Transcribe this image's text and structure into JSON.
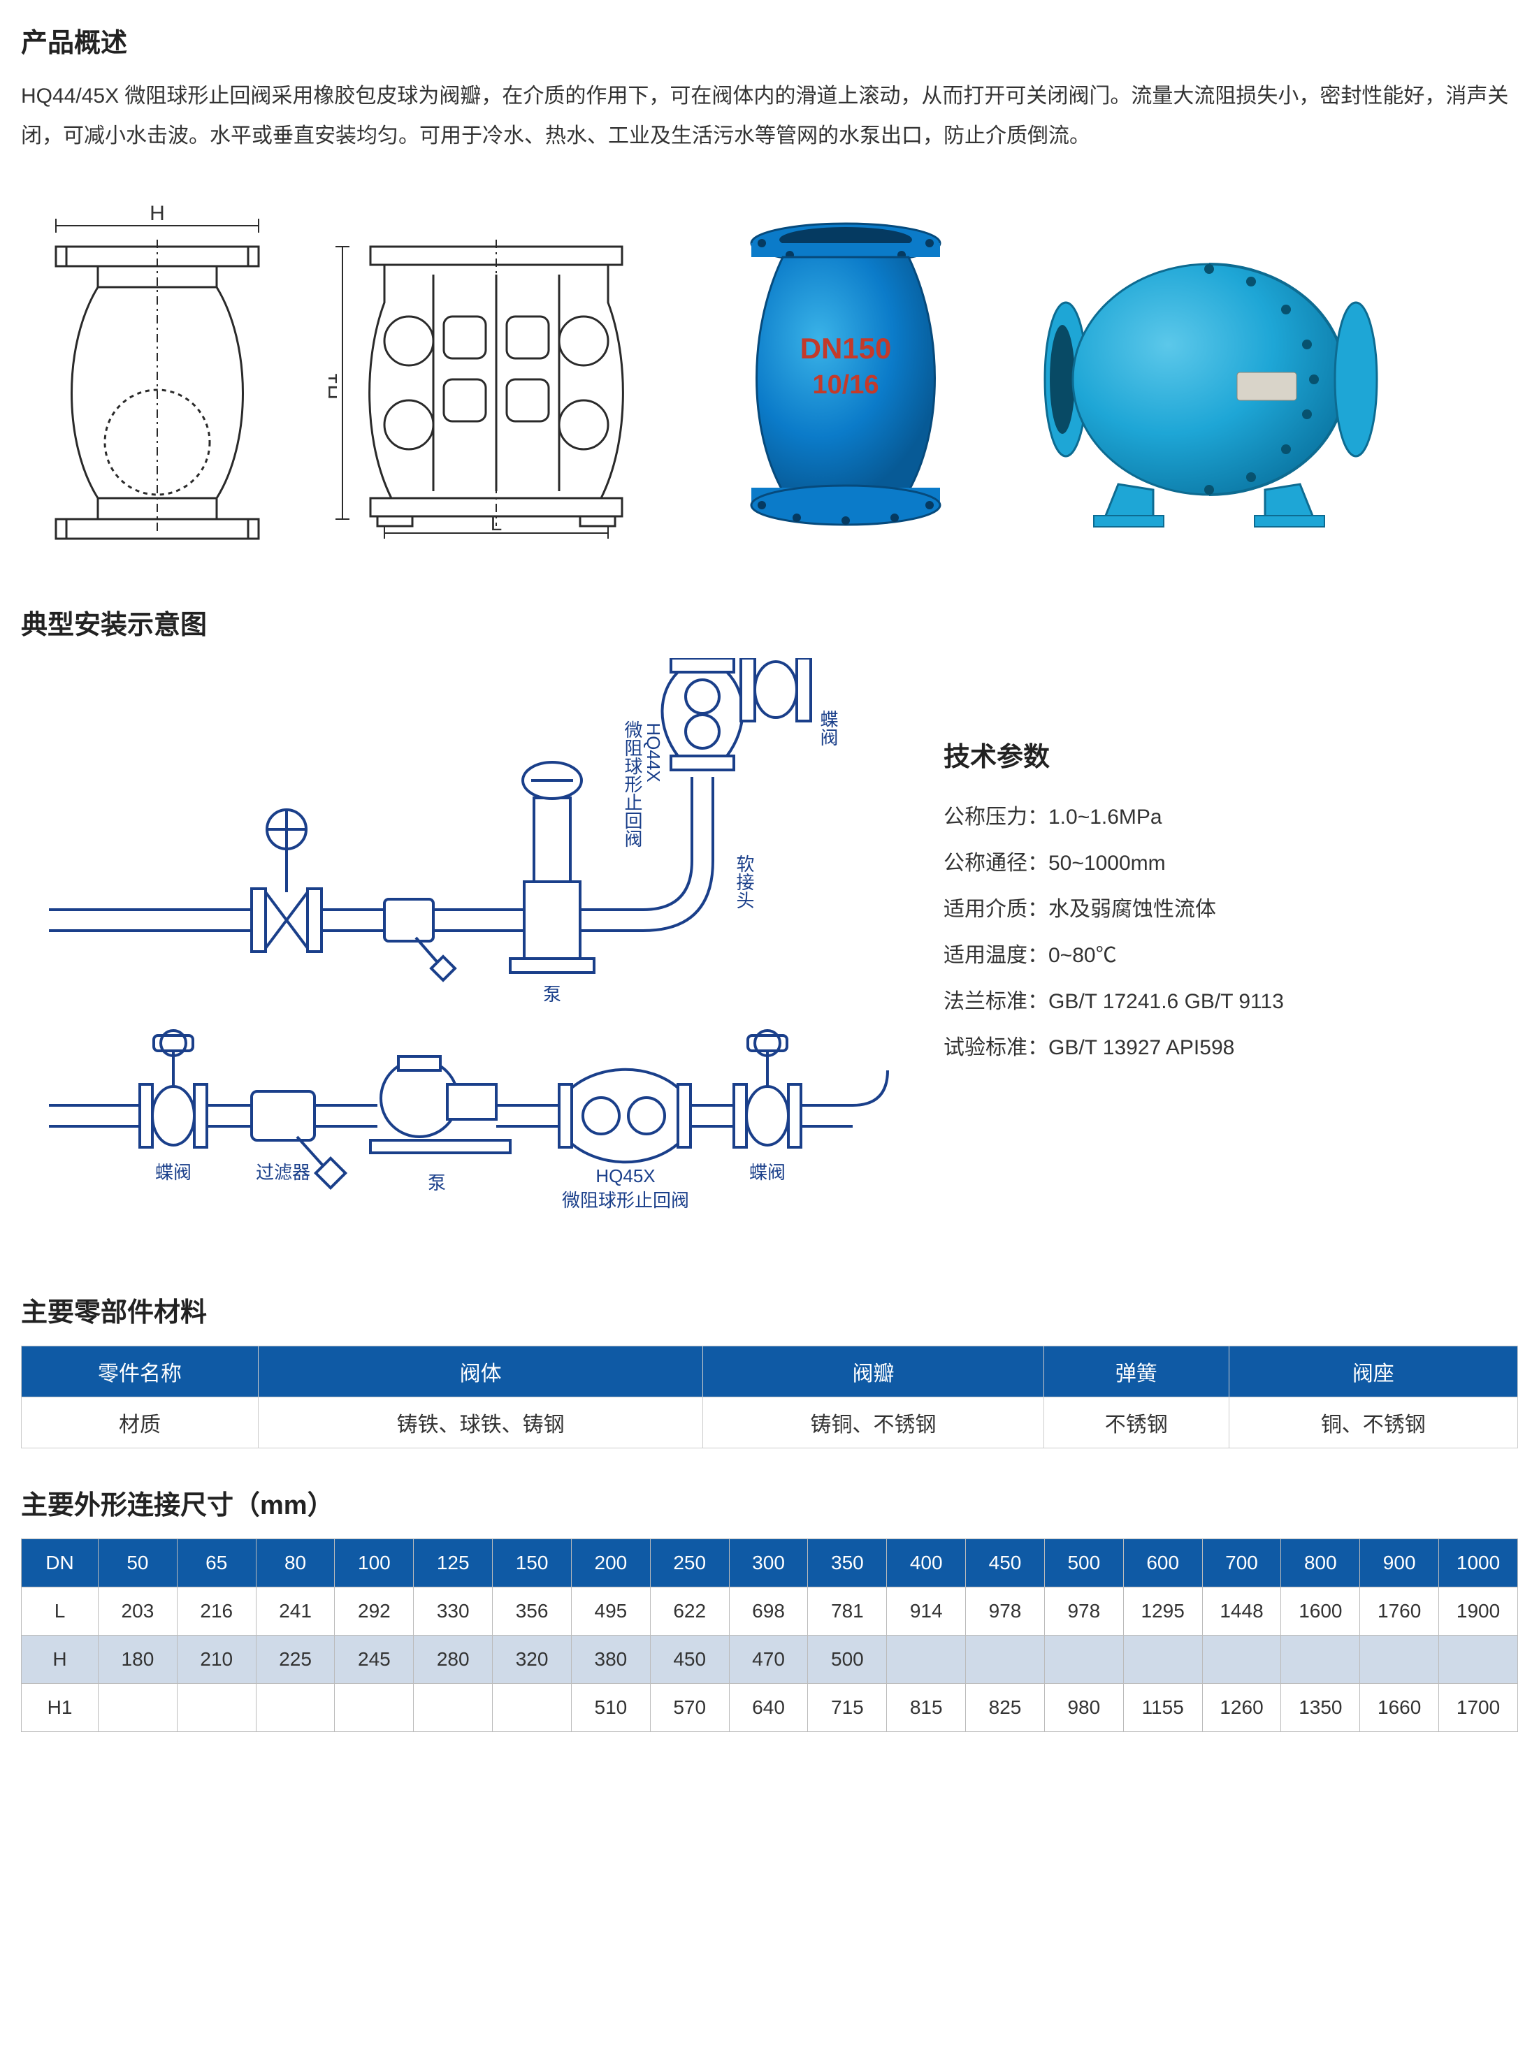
{
  "overview": {
    "title": "产品概述",
    "text": "HQ44/45X 微阻球形止回阀采用橡胶包皮球为阀瓣，在介质的作用下，可在阀体内的滑道上滚动，从而打开可关闭阀门。流量大流阻损失小，密封性能好，消声关闭，可减小水击波。水平或垂直安装均匀。可用于冷水、热水、工业及生活污水等管网的水泵出口，防止介质倒流。"
  },
  "drawing": {
    "dim_H": "H",
    "dim_H1": "H1",
    "dim_L": "L",
    "product_label": "DN150",
    "product_sub": "10/16"
  },
  "install": {
    "title": "典型安装示意图",
    "labels": {
      "butterfly_valve": "蝶阀",
      "filter": "过滤器",
      "pump": "泵",
      "hq45x_line1": "HQ45X",
      "hq45x_line2": "微阻球形止回阀",
      "hq44x": "HQ44X",
      "hq44x_sub": "微阻球形止回阀",
      "flexible_joint": "软接头"
    }
  },
  "tech": {
    "title": "技术参数",
    "lines": [
      "公称压力：1.0~1.6MPa",
      "公称通径：50~1000mm",
      "适用介质：水及弱腐蚀性流体",
      "适用温度：0~80℃",
      "法兰标准：GB/T 17241.6 GB/T 9113",
      "试验标准：GB/T 13927 API598"
    ]
  },
  "materials": {
    "title": "主要零部件材料",
    "headers": [
      "零件名称",
      "阀体",
      "阀瓣",
      "弹簧",
      "阀座"
    ],
    "row_label": "材质",
    "row": [
      "铸铁、球铁、铸钢",
      "铸铜、不锈钢",
      "不锈钢",
      "铜、不锈钢"
    ]
  },
  "dimensions": {
    "title": "主要外形连接尺寸（mm）",
    "dn_header": "DN",
    "dn_values": [
      "50",
      "65",
      "80",
      "100",
      "125",
      "150",
      "200",
      "250",
      "300",
      "350",
      "400",
      "450",
      "500",
      "600",
      "700",
      "800",
      "900",
      "1000"
    ],
    "rows": [
      {
        "key": "L",
        "vals": [
          "203",
          "216",
          "241",
          "292",
          "330",
          "356",
          "495",
          "622",
          "698",
          "781",
          "914",
          "978",
          "978",
          "1295",
          "1448",
          "1600",
          "1760",
          "1900"
        ]
      },
      {
        "key": "H",
        "vals": [
          "180",
          "210",
          "225",
          "245",
          "280",
          "320",
          "380",
          "450",
          "470",
          "500",
          "",
          "",
          "",
          "",
          "",
          "",
          "",
          ""
        ]
      },
      {
        "key": "H1",
        "vals": [
          "",
          "",
          "",
          "",
          "",
          "",
          "510",
          "570",
          "640",
          "715",
          "815",
          "825",
          "980",
          "1155",
          "1260",
          "1350",
          "1660",
          "1700"
        ]
      }
    ]
  },
  "colors": {
    "header_bg": "#0f5aa5",
    "alt_row_bg": "#cfdae8",
    "line_blue": "#1a3f8a",
    "valve_blue1": "#0b7bc9",
    "valve_blue2": "#1ea6d6",
    "drawing_stroke": "#2a2a2a"
  }
}
